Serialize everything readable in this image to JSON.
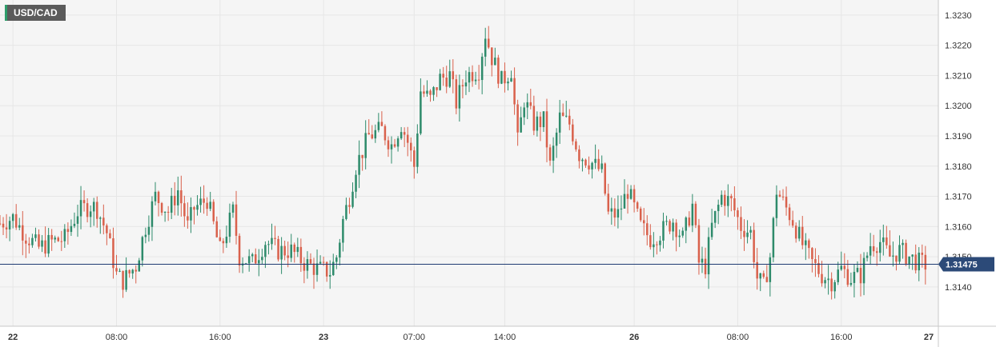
{
  "symbol": "USD/CAD",
  "colors": {
    "up": "#2e8b6b",
    "down": "#d9614c",
    "grid": "#e6e6e6",
    "plot_bg": "#f5f5f5",
    "price_line": "#1f3b73",
    "price_tag": "#2c4a78",
    "axis_line": "#c8c8c8"
  },
  "chart_data": {
    "type": "candlestick",
    "title": "USD/CAD",
    "ylim": [
      1.3127,
      1.3235
    ],
    "yticks": [
      1.314,
      1.315,
      1.316,
      1.317,
      1.318,
      1.319,
      1.32,
      1.321,
      1.322,
      1.323
    ],
    "ytick_labels": [
      "1.3140",
      "1.3150",
      "1.3160",
      "1.3170",
      "1.3180",
      "1.3190",
      "1.3200",
      "1.3210",
      "1.3220",
      "1.3230"
    ],
    "xlim": [
      0,
      290
    ],
    "xticks": [
      {
        "label": "22",
        "x": 4,
        "major": true
      },
      {
        "label": "08:00",
        "x": 36,
        "major": false
      },
      {
        "label": "16:00",
        "x": 68,
        "major": false
      },
      {
        "label": "23",
        "x": 100,
        "major": true
      },
      {
        "label": "07:00",
        "x": 128,
        "major": false
      },
      {
        "label": "14:00",
        "x": 156,
        "major": false
      },
      {
        "label": "26",
        "x": 196,
        "major": true
      },
      {
        "label": "08:00",
        "x": 228,
        "major": false
      },
      {
        "label": "16:00",
        "x": 260,
        "major": false
      },
      {
        "label": "27",
        "x": 292,
        "major": true
      }
    ],
    "anchors": [
      [
        0,
        1.3161
      ],
      [
        4,
        1.3163
      ],
      [
        8,
        1.3157
      ],
      [
        12,
        1.3153
      ],
      [
        16,
        1.3155
      ],
      [
        20,
        1.3156
      ],
      [
        24,
        1.3165
      ],
      [
        28,
        1.3167
      ],
      [
        30,
        1.3166
      ],
      [
        33,
        1.3158
      ],
      [
        36,
        1.3144
      ],
      [
        38,
        1.3142
      ],
      [
        42,
        1.3147
      ],
      [
        45,
        1.316
      ],
      [
        48,
        1.317
      ],
      [
        52,
        1.3165
      ],
      [
        55,
        1.3172
      ],
      [
        58,
        1.316
      ],
      [
        60,
        1.3166
      ],
      [
        64,
        1.3169
      ],
      [
        68,
        1.3152
      ],
      [
        72,
        1.3165
      ],
      [
        74,
        1.315
      ],
      [
        78,
        1.3148
      ],
      [
        82,
        1.3155
      ],
      [
        86,
        1.3152
      ],
      [
        90,
        1.3152
      ],
      [
        94,
        1.3148
      ],
      [
        98,
        1.3146
      ],
      [
        102,
        1.3145
      ],
      [
        104,
        1.315
      ],
      [
        106,
        1.3162
      ],
      [
        108,
        1.317
      ],
      [
        110,
        1.318
      ],
      [
        114,
        1.319
      ],
      [
        118,
        1.3192
      ],
      [
        121,
        1.3187
      ],
      [
        124,
        1.3194
      ],
      [
        126,
        1.3188
      ],
      [
        128,
        1.318
      ],
      [
        130,
        1.3205
      ],
      [
        133,
        1.3202
      ],
      [
        136,
        1.3209
      ],
      [
        139,
        1.321
      ],
      [
        141,
        1.3201
      ],
      [
        144,
        1.321
      ],
      [
        148,
        1.3212
      ],
      [
        150,
        1.3224
      ],
      [
        152,
        1.3216
      ],
      [
        155,
        1.3208
      ],
      [
        158,
        1.3212
      ],
      [
        160,
        1.3188
      ],
      [
        162,
        1.3202
      ],
      [
        165,
        1.3194
      ],
      [
        168,
        1.3195
      ],
      [
        170,
        1.318
      ],
      [
        173,
        1.3196
      ],
      [
        176,
        1.3194
      ],
      [
        179,
        1.3184
      ],
      [
        183,
        1.3181
      ],
      [
        186,
        1.3178
      ],
      [
        188,
        1.3164
      ],
      [
        191,
        1.3164
      ],
      [
        194,
        1.3172
      ],
      [
        198,
        1.316
      ],
      [
        201,
        1.3156
      ],
      [
        204,
        1.3158
      ],
      [
        208,
        1.3162
      ],
      [
        211,
        1.3156
      ],
      [
        214,
        1.3167
      ],
      [
        216,
        1.3148
      ],
      [
        218,
        1.3147
      ],
      [
        220,
        1.316
      ],
      [
        223,
        1.317
      ],
      [
        226,
        1.3168
      ],
      [
        229,
        1.316
      ],
      [
        232,
        1.3158
      ],
      [
        234,
        1.3143
      ],
      [
        236,
        1.314
      ],
      [
        238,
        1.315
      ],
      [
        240,
        1.3172
      ],
      [
        242,
        1.3168
      ],
      [
        245,
        1.3162
      ],
      [
        248,
        1.3154
      ],
      [
        251,
        1.3148
      ],
      [
        254,
        1.3144
      ],
      [
        257,
        1.3142
      ],
      [
        260,
        1.3146
      ],
      [
        263,
        1.3143
      ],
      [
        266,
        1.3144
      ],
      [
        269,
        1.3154
      ],
      [
        272,
        1.3155
      ],
      [
        275,
        1.315
      ],
      [
        278,
        1.3152
      ],
      [
        281,
        1.315
      ],
      [
        284,
        1.3148
      ],
      [
        286,
        1.31475
      ]
    ],
    "last_price": 1.31475,
    "last_price_label": "1.31475",
    "grid": true
  }
}
